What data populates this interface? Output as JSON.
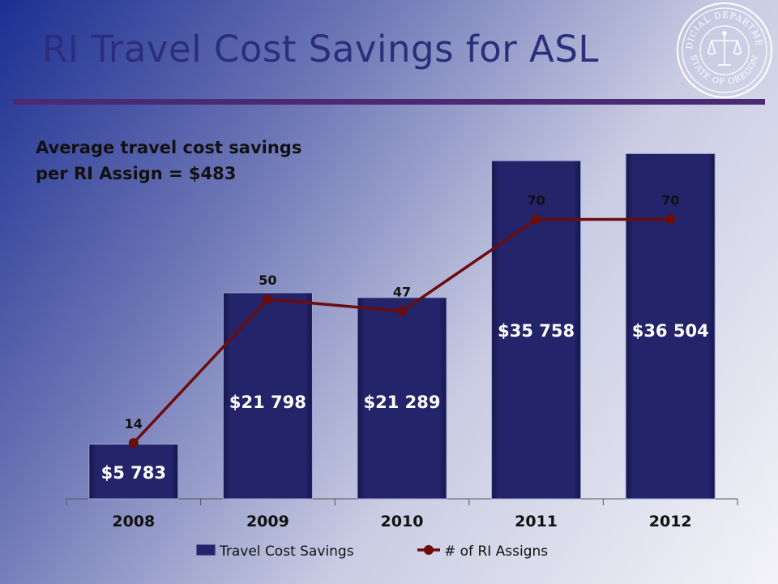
{
  "slide": {
    "title": "RI Travel Cost Savings for ASL",
    "subtitle_lines": [
      "Average travel cost savings",
      "per RI Assign = $483"
    ],
    "seal": {
      "top_text": "JUDICIAL DEPARTMENT",
      "bottom_text": "STATE OF OREGON"
    }
  },
  "colors": {
    "title": "#2b2e7a",
    "rule": "#4a2a72",
    "bar": "#23246a",
    "line": "#6b0d0d",
    "bar_label": "#ffffff",
    "line_label": "#111111"
  },
  "chart_data": {
    "type": "bar",
    "categories": [
      "2008",
      "2009",
      "2010",
      "2011",
      "2012"
    ],
    "series": [
      {
        "name": "Travel Cost Savings",
        "type": "bar",
        "axis": "primary",
        "values": [
          5783,
          21798,
          21289,
          35758,
          36504
        ],
        "labels": [
          "$5 783",
          "$21 798",
          "$21 289",
          "$35 758",
          "$36 504"
        ]
      },
      {
        "name": "# of RI Assigns",
        "type": "line",
        "axis": "secondary",
        "values": [
          14,
          50,
          47,
          70,
          70
        ],
        "labels": [
          "14",
          "50",
          "47",
          "70",
          "70"
        ]
      }
    ],
    "ylim": [
      0,
      38000
    ],
    "y2lim": [
      0,
      90
    ],
    "grid": false,
    "legend": "bottom"
  }
}
